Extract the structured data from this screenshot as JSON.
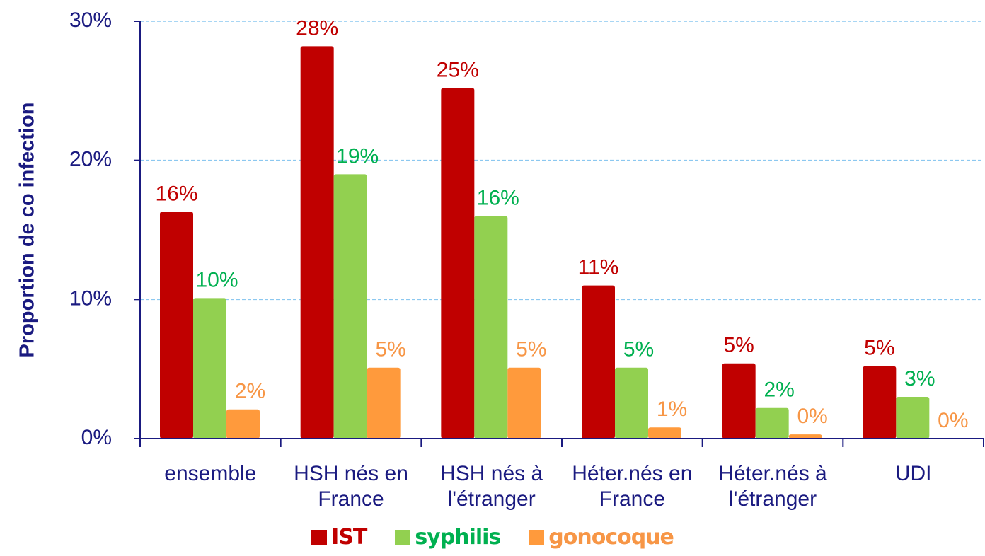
{
  "chart_data": {
    "type": "bar",
    "y_label": "Proportion de co infection",
    "categories": [
      "ensemble",
      "HSH nés en France",
      "HSH nés à l'étranger",
      "Héter.nés en France",
      "Héter.nés à l'étranger",
      "UDI"
    ],
    "series": [
      {
        "name": "IST",
        "color": "#c00000",
        "label_color": "#c00000",
        "values": [
          16.3,
          28.2,
          25.2,
          11,
          5.4,
          5.2
        ],
        "value_labels": [
          "16%",
          "28%",
          "25%",
          "11%",
          "5%",
          "5%"
        ]
      },
      {
        "name": "syphilis",
        "color": "#92d050",
        "label_color": "#00b050",
        "values": [
          10.1,
          19,
          16,
          5.1,
          2.2,
          3
        ],
        "value_labels": [
          "10%",
          "19%",
          "16%",
          "5%",
          "2%",
          "3%"
        ]
      },
      {
        "name": "gonocoque",
        "color": "#ff9a3c",
        "label_color": "#f79646",
        "values": [
          2.1,
          5.1,
          5.1,
          0.8,
          0.3,
          0
        ],
        "value_labels": [
          "2%",
          "5%",
          "5%",
          "1%",
          "0%",
          "0%"
        ]
      }
    ],
    "ylim": [
      0,
      30
    ],
    "yticks": [
      {
        "value": 0,
        "label": "0%"
      },
      {
        "value": 10,
        "label": "10%"
      },
      {
        "value": 20,
        "label": "20%"
      },
      {
        "value": 30,
        "label": "30%"
      }
    ],
    "grid": true,
    "legend": "bottom"
  }
}
